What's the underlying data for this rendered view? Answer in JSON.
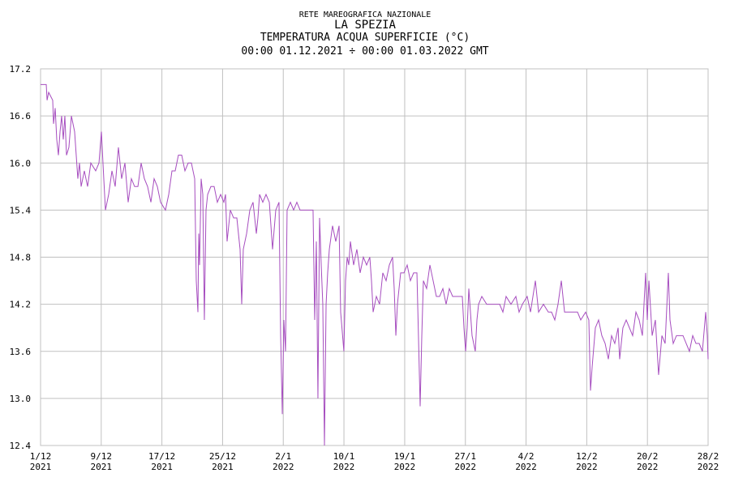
{
  "chart_data": {
    "type": "line",
    "header": "RETE MAREOGRAFICA NAZIONALE",
    "title": "LA SPEZIA",
    "subtitle": [
      "TEMPERATURA ACQUA SUPERFICIE (°C)",
      "00:00 01.12.2021 ÷ 00:00 01.03.2022 GMT"
    ],
    "color": "#a64dbf",
    "grid": true,
    "xlim": [
      0,
      89
    ],
    "xticks": [
      {
        "value": 0,
        "label": "1/12",
        "year": "2021"
      },
      {
        "value": 8.09,
        "label": "9/12",
        "year": "2021"
      },
      {
        "value": 16.18,
        "label": "17/12",
        "year": "2021"
      },
      {
        "value": 24.27,
        "label": "25/12",
        "year": "2021"
      },
      {
        "value": 32.36,
        "label": "2/1",
        "year": "2022"
      },
      {
        "value": 40.45,
        "label": "10/1",
        "year": "2022"
      },
      {
        "value": 48.55,
        "label": "19/1",
        "year": "2022"
      },
      {
        "value": 56.64,
        "label": "27/1",
        "year": "2022"
      },
      {
        "value": 64.73,
        "label": "4/2",
        "year": "2022"
      },
      {
        "value": 72.82,
        "label": "12/2",
        "year": "2022"
      },
      {
        "value": 80.91,
        "label": "20/2",
        "year": "2022"
      },
      {
        "value": 89,
        "label": "28/2",
        "year": "2022"
      }
    ],
    "ylim": [
      12.4,
      17.2
    ],
    "yticks": [
      12.4,
      {
        "value": 13,
        "label": "13.0"
      },
      13.6,
      14.2,
      14.8,
      15.4,
      {
        "value": 16,
        "label": "16.0"
      },
      16.6,
      17.2
    ],
    "x": [
      0,
      0.76,
      0.87,
      1.08,
      1.62,
      1.73,
      1.95,
      2.16,
      2.38,
      2.6,
      2.81,
      3.03,
      3.24,
      3.46,
      3.78,
      4.11,
      4.54,
      4.97,
      5.19,
      5.41,
      5.84,
      6.27,
      6.7,
      7.35,
      7.79,
      8.11,
      8.43,
      8.65,
      9.08,
      9.52,
      9.95,
      10.38,
      10.81,
      11.25,
      11.68,
      12.11,
      12.54,
      12.98,
      13.41,
      13.84,
      14.27,
      14.71,
      15.14,
      15.57,
      16.0,
      16.65,
      17.09,
      17.52,
      17.95,
      18.38,
      18.82,
      19.25,
      19.68,
      20.11,
      20.55,
      20.76,
      20.98,
      21.09,
      21.2,
      21.41,
      21.63,
      21.84,
      22.06,
      22.28,
      22.71,
      23.14,
      23.57,
      24.01,
      24.44,
      24.66,
      24.87,
      25.3,
      25.74,
      26.17,
      26.6,
      26.82,
      27.03,
      27.47,
      27.9,
      28.33,
      28.77,
      28.98,
      29.2,
      29.63,
      30.06,
      30.5,
      30.93,
      31.36,
      31.79,
      32.01,
      32.23,
      32.44,
      32.66,
      32.87,
      33.31,
      33.74,
      34.17,
      34.6,
      35.69,
      36.33,
      36.55,
      36.77,
      36.98,
      37.2,
      37.42,
      37.63,
      37.85,
      38.07,
      38.28,
      38.5,
      38.93,
      39.36,
      39.8,
      40.01,
      40.44,
      40.66,
      40.88,
      41.09,
      41.31,
      41.74,
      42.17,
      42.61,
      43.04,
      43.47,
      43.9,
      44.12,
      44.34,
      44.77,
      45.2,
      45.63,
      46.07,
      46.5,
      46.93,
      47.15,
      47.37,
      47.58,
      48.01,
      48.45,
      48.88,
      49.31,
      49.74,
      50.18,
      50.61,
      50.83,
      51.04,
      51.47,
      51.91,
      52.34,
      52.77,
      53.2,
      53.64,
      54.07,
      54.5,
      54.94,
      55.37,
      55.8,
      56.23,
      56.45,
      56.67,
      56.88,
      57.1,
      57.53,
      57.96,
      58.18,
      58.4,
      58.83,
      59.48,
      60.56,
      61.21,
      61.64,
      62.07,
      62.72,
      63.37,
      63.8,
      64.24,
      64.88,
      65.32,
      65.97,
      66.4,
      67.05,
      67.7,
      68.13,
      68.56,
      68.99,
      69.43,
      69.86,
      70.29,
      70.94,
      71.59,
      72.02,
      72.67,
      73.1,
      73.32,
      73.54,
      73.97,
      74.4,
      74.83,
      75.27,
      75.7,
      76.13,
      76.56,
      77.0,
      77.21,
      77.64,
      78.08,
      78.51,
      78.94,
      79.38,
      79.81,
      80.24,
      80.67,
      80.89,
      81.11,
      81.54,
      81.97,
      82.4,
      82.84,
      83.27,
      83.7,
      83.92,
      84.35,
      84.78,
      85.21,
      85.65,
      86.08,
      86.51,
      86.95,
      87.38,
      87.81,
      88.24,
      88.68,
      88.89,
      89.0
    ],
    "values": [
      17.0,
      17.0,
      16.8,
      16.9,
      16.8,
      16.5,
      16.7,
      16.3,
      16.1,
      16.4,
      16.6,
      16.3,
      16.6,
      16.1,
      16.2,
      16.6,
      16.4,
      15.8,
      16.0,
      15.7,
      15.9,
      15.7,
      16.0,
      15.9,
      16.0,
      16.4,
      15.8,
      15.4,
      15.6,
      15.9,
      15.7,
      16.2,
      15.8,
      16.0,
      15.5,
      15.8,
      15.7,
      15.7,
      16.0,
      15.8,
      15.7,
      15.5,
      15.8,
      15.7,
      15.5,
      15.4,
      15.6,
      15.9,
      15.9,
      16.1,
      16.1,
      15.9,
      16.0,
      16.0,
      15.8,
      14.5,
      14.1,
      15.1,
      14.7,
      15.8,
      15.6,
      14.0,
      15.4,
      15.6,
      15.7,
      15.7,
      15.5,
      15.6,
      15.5,
      15.6,
      15.0,
      15.4,
      15.3,
      15.3,
      14.9,
      14.2,
      14.9,
      15.1,
      15.4,
      15.5,
      15.1,
      15.3,
      15.6,
      15.5,
      15.6,
      15.5,
      14.9,
      15.4,
      15.5,
      13.8,
      12.8,
      14.0,
      13.6,
      15.4,
      15.5,
      15.4,
      15.5,
      15.4,
      15.4,
      15.4,
      14.0,
      15.0,
      13.0,
      15.3,
      14.7,
      14.2,
      12.4,
      14.2,
      14.6,
      14.9,
      15.2,
      15.0,
      15.2,
      14.1,
      13.6,
      14.5,
      14.8,
      14.7,
      15.0,
      14.7,
      14.9,
      14.6,
      14.8,
      14.7,
      14.8,
      14.5,
      14.1,
      14.3,
      14.2,
      14.6,
      14.5,
      14.7,
      14.8,
      14.4,
      13.8,
      14.2,
      14.6,
      14.6,
      14.7,
      14.5,
      14.6,
      14.6,
      12.9,
      13.8,
      14.5,
      14.4,
      14.7,
      14.5,
      14.3,
      14.3,
      14.4,
      14.2,
      14.4,
      14.3,
      14.3,
      14.3,
      14.3,
      13.9,
      13.6,
      13.9,
      14.4,
      13.8,
      13.6,
      14.0,
      14.2,
      14.3,
      14.2,
      14.2,
      14.2,
      14.1,
      14.3,
      14.2,
      14.3,
      14.1,
      14.2,
      14.3,
      14.1,
      14.5,
      14.1,
      14.2,
      14.1,
      14.1,
      14.0,
      14.2,
      14.5,
      14.1,
      14.1,
      14.1,
      14.1,
      14.0,
      14.1,
      14.0,
      13.1,
      13.4,
      13.9,
      14.0,
      13.8,
      13.7,
      13.5,
      13.8,
      13.7,
      13.9,
      13.5,
      13.9,
      14.0,
      13.9,
      13.8,
      14.1,
      14.0,
      13.8,
      14.6,
      14.0,
      14.5,
      13.8,
      14.0,
      13.3,
      13.8,
      13.7,
      14.6,
      14.0,
      13.7,
      13.8,
      13.8,
      13.8,
      13.7,
      13.6,
      13.8,
      13.7,
      13.7,
      13.6,
      14.1,
      13.8,
      13.5
    ]
  }
}
